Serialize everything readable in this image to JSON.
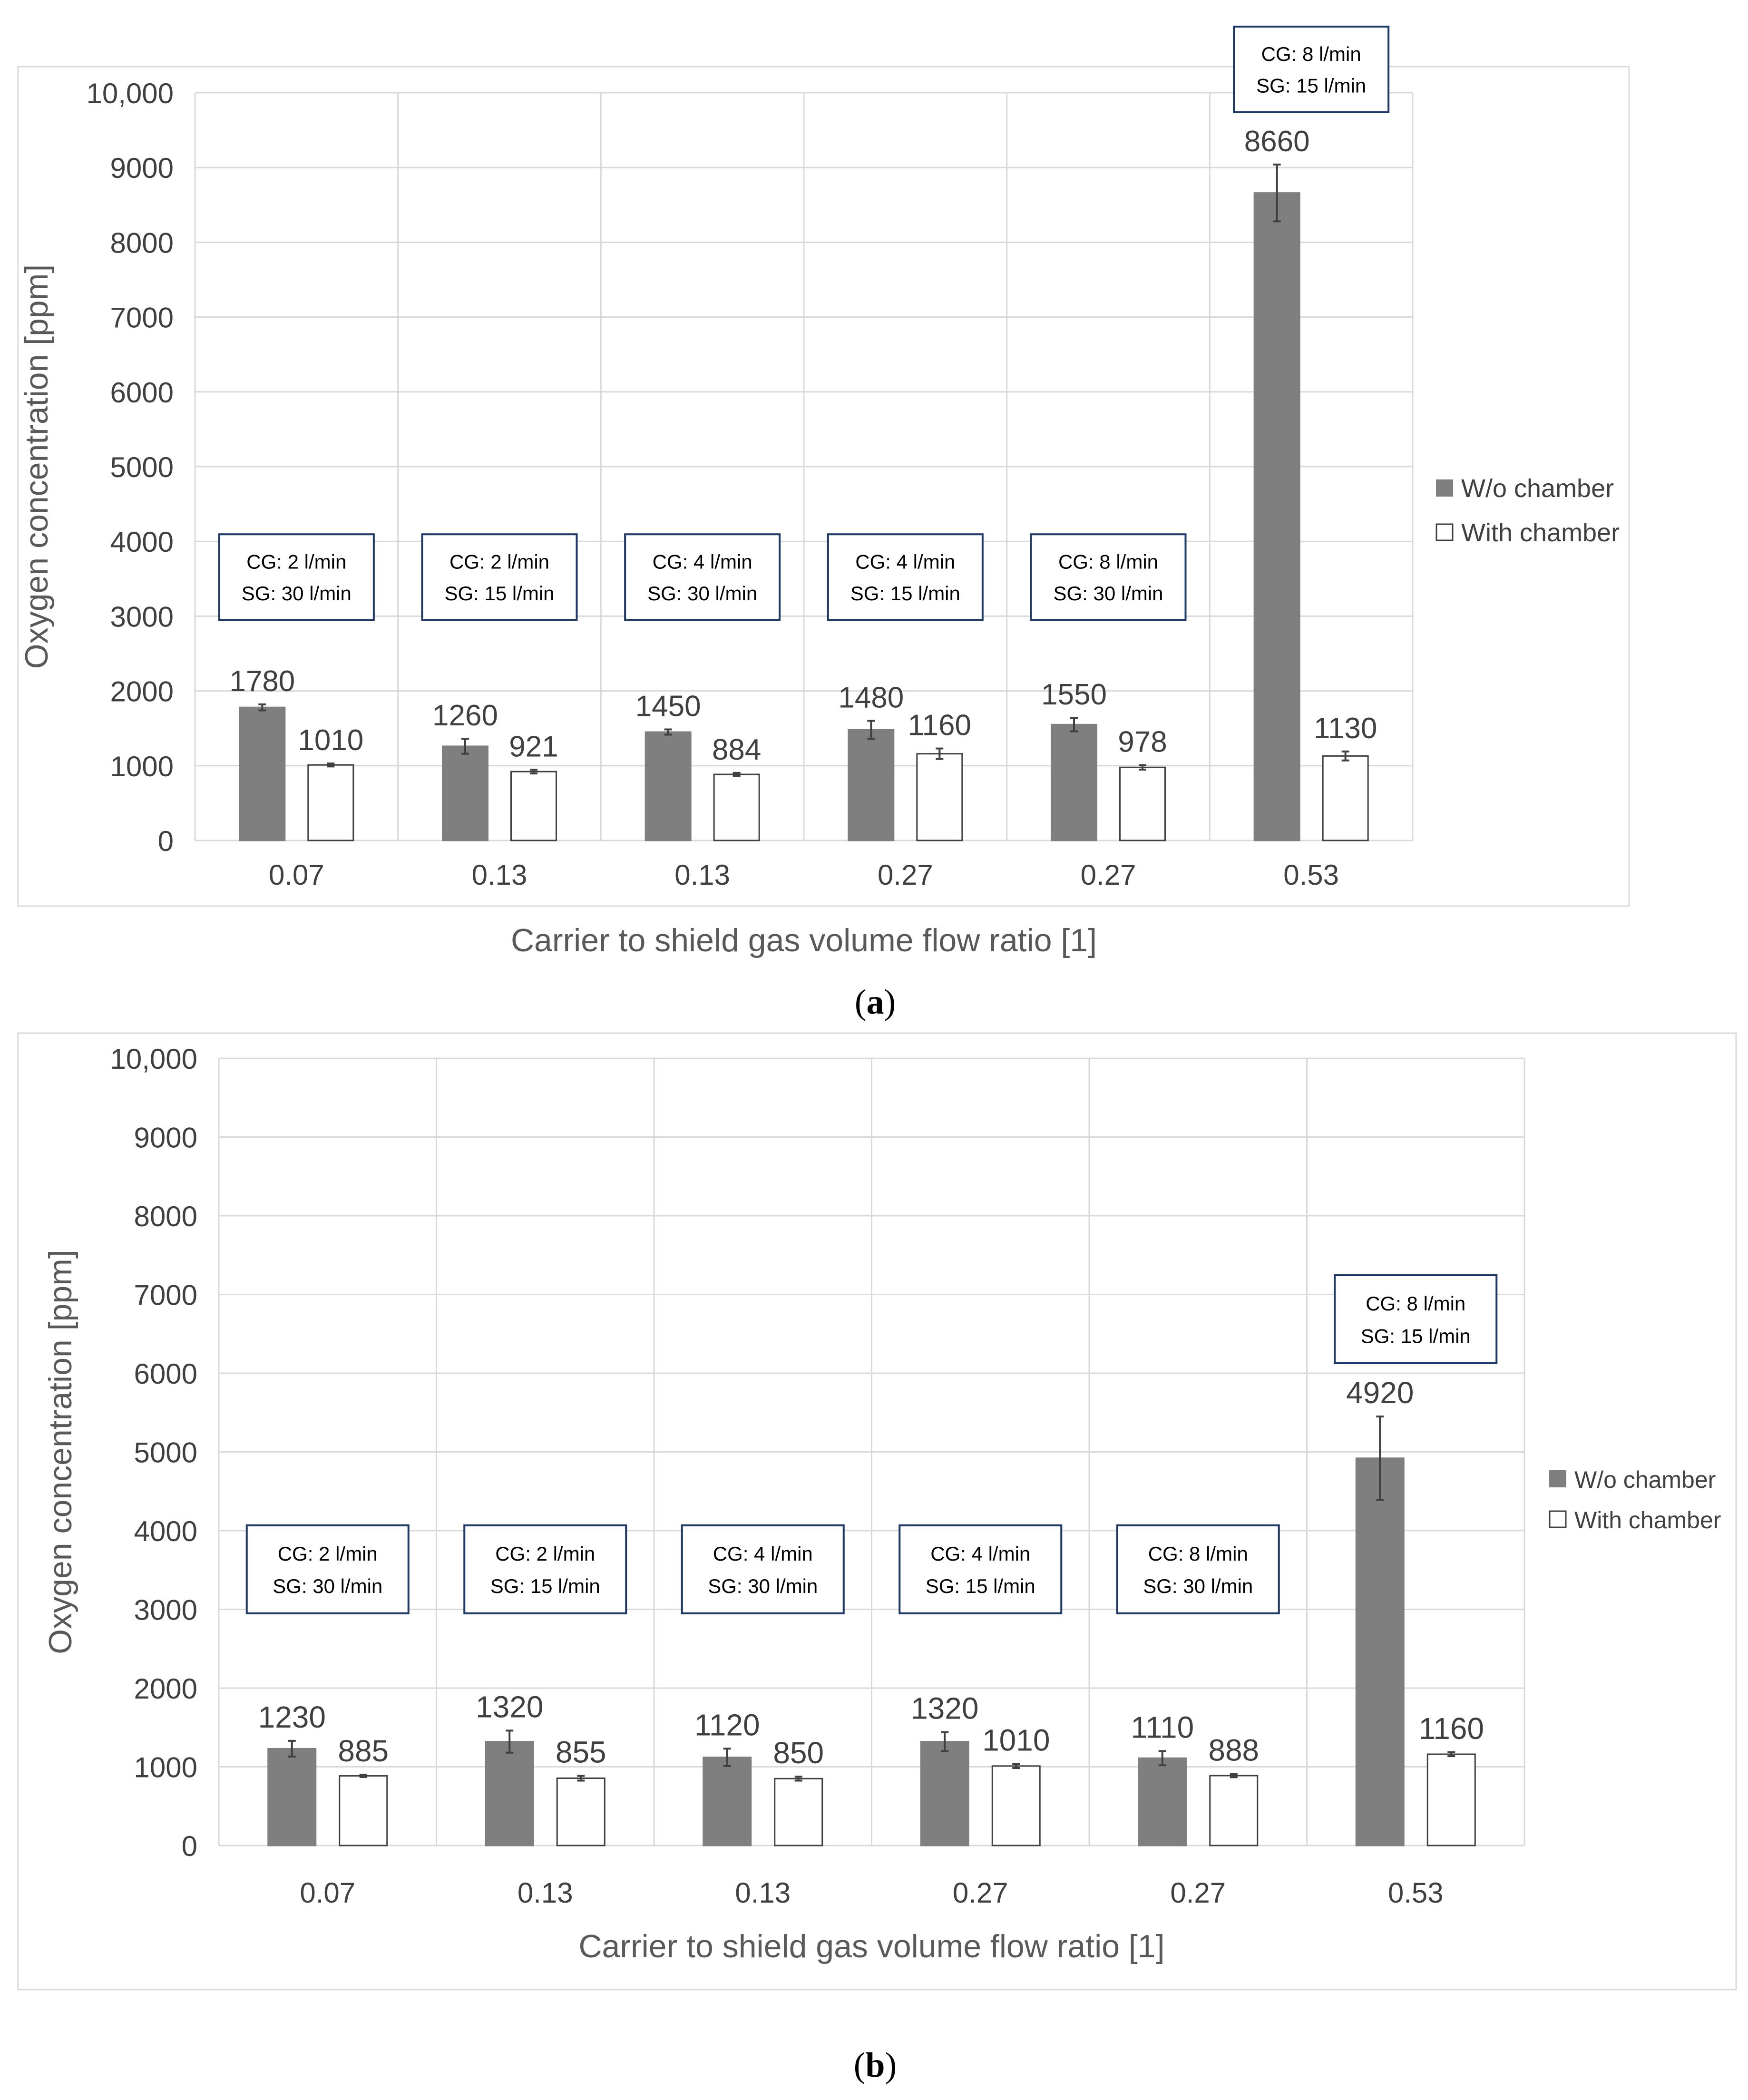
{
  "figure": {
    "panel_a_label": "a",
    "panel_b_label": "b"
  },
  "chart_data": [
    {
      "type": "bar",
      "panel": "a",
      "title": "",
      "xlabel": "Carrier to shield gas volume flow ratio [1]",
      "ylabel": "Oxygen concentration [ppm]",
      "ylim": [
        0,
        10000
      ],
      "yticks": [
        "0",
        "1000",
        "2000",
        "3000",
        "4000",
        "5000",
        "6000",
        "7000",
        "8000",
        "9000",
        "10,000"
      ],
      "ytick_values": [
        0,
        1000,
        2000,
        3000,
        4000,
        5000,
        6000,
        7000,
        8000,
        9000,
        10000
      ],
      "grid": true,
      "legend_position": "right",
      "categories": [
        "0.07",
        "0.13",
        "0.13",
        "0.27",
        "0.27",
        "0.53"
      ],
      "annotations": [
        {
          "cg": "CG: 2 l/min",
          "sg": "SG: 30 l/min"
        },
        {
          "cg": "CG: 2 l/min",
          "sg": "SG: 15 l/min"
        },
        {
          "cg": "CG: 4 l/min",
          "sg": "SG: 30 l/min"
        },
        {
          "cg": "CG: 4 l/min",
          "sg": "SG: 15 l/min"
        },
        {
          "cg": "CG: 8 l/min",
          "sg": "SG: 30 l/min"
        },
        {
          "cg": "CG: 8 l/min",
          "sg": "SG: 15 l/min"
        }
      ],
      "series": [
        {
          "name": "W/o chamber",
          "color": "#7f7f7f",
          "values": [
            1780,
            1260,
            1450,
            1480,
            1550,
            8660
          ],
          "errors": [
            40,
            100,
            35,
            120,
            90,
            380
          ]
        },
        {
          "name": "With chamber",
          "color": "#ffffff",
          "values": [
            1010,
            921,
            884,
            1160,
            978,
            1130
          ],
          "errors": [
            20,
            25,
            20,
            70,
            30,
            60
          ]
        }
      ]
    },
    {
      "type": "bar",
      "panel": "b",
      "title": "",
      "xlabel": "Carrier to shield gas volume flow ratio [1]",
      "ylabel": "Oxygen concentration [ppm]",
      "ylim": [
        0,
        10000
      ],
      "yticks": [
        "0",
        "1000",
        "2000",
        "3000",
        "4000",
        "5000",
        "6000",
        "7000",
        "8000",
        "9000",
        "10,000"
      ],
      "ytick_values": [
        0,
        1000,
        2000,
        3000,
        4000,
        5000,
        6000,
        7000,
        8000,
        9000,
        10000
      ],
      "grid": true,
      "legend_position": "right",
      "categories": [
        "0.07",
        "0.13",
        "0.13",
        "0.27",
        "0.27",
        "0.53"
      ],
      "annotations": [
        {
          "cg": "CG: 2 l/min",
          "sg": "SG: 30 l/min"
        },
        {
          "cg": "CG: 2 l/min",
          "sg": "SG: 15 l/min"
        },
        {
          "cg": "CG: 4 l/min",
          "sg": "SG: 30 l/min"
        },
        {
          "cg": "CG: 4 l/min",
          "sg": "SG: 15 l/min"
        },
        {
          "cg": "CG: 8 l/min",
          "sg": "SG: 30 l/min"
        },
        {
          "cg": "CG: 8 l/min",
          "sg": "SG: 15 l/min"
        }
      ],
      "series": [
        {
          "name": "W/o chamber",
          "color": "#7f7f7f",
          "values": [
            1230,
            1320,
            1120,
            1320,
            1110,
            4920
          ],
          "errors": [
            100,
            140,
            110,
            120,
            90,
            530
          ]
        },
        {
          "name": "With chamber",
          "color": "#ffffff",
          "values": [
            885,
            855,
            850,
            1010,
            888,
            1160
          ],
          "errors": [
            15,
            30,
            25,
            25,
            20,
            25
          ]
        }
      ]
    }
  ]
}
